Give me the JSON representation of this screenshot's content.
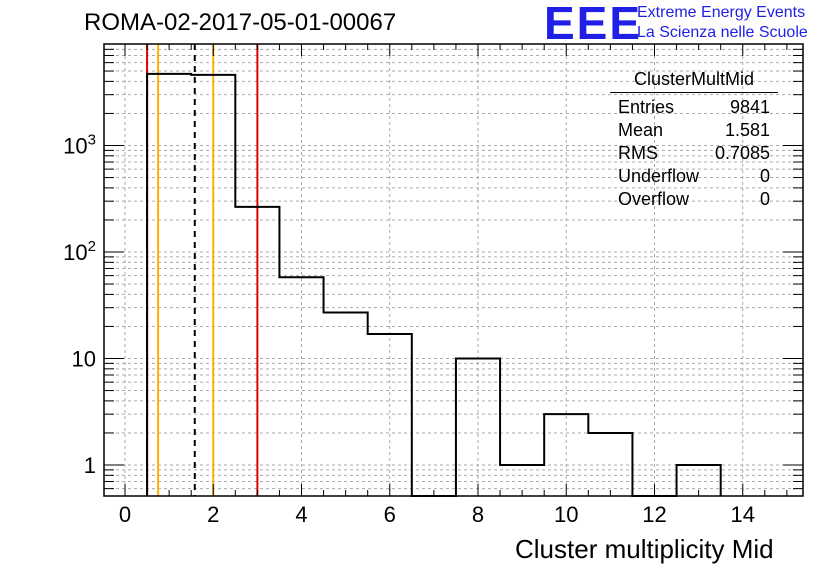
{
  "header": {
    "run_title": "ROMA-02-2017-05-01-00067",
    "logo_mark": "EEE",
    "logo_line1": "Extreme Energy Events",
    "logo_line2": "La Scienza nelle Scuole"
  },
  "stats_box": {
    "title": "ClusterMultMid",
    "rows": [
      {
        "label": "Entries",
        "value": "9841"
      },
      {
        "label": "Mean",
        "value": "1.581"
      },
      {
        "label": "RMS",
        "value": "0.7085"
      },
      {
        "label": "Underflow",
        "value": "0"
      },
      {
        "label": "Overflow",
        "value": "0"
      }
    ]
  },
  "colors": {
    "histogram": "#000000",
    "red_marker": "#e00000",
    "orange_marker": "#ffb000",
    "dashed_marker": "#000000",
    "grid": "#aaaaaa",
    "logo_blue": "#1f1fe6"
  },
  "chart_data": {
    "type": "histogram",
    "title": "ROMA-02-2017-05-01-00067",
    "xlabel": "Cluster multiplicity Mid",
    "ylabel": "",
    "xlim": [
      -0.5,
      15.5
    ],
    "ylim": [
      0.5,
      8000
    ],
    "yscale": "log",
    "grid": true,
    "bins": [
      {
        "x0": 0.5,
        "x1": 1.5,
        "count": 4700
      },
      {
        "x0": 1.5,
        "x1": 2.5,
        "count": 4600
      },
      {
        "x0": 2.5,
        "x1": 3.5,
        "count": 265
      },
      {
        "x0": 3.5,
        "x1": 4.5,
        "count": 58
      },
      {
        "x0": 4.5,
        "x1": 5.5,
        "count": 27
      },
      {
        "x0": 5.5,
        "x1": 6.5,
        "count": 17
      },
      {
        "x0": 6.5,
        "x1": 7.5,
        "count": 0
      },
      {
        "x0": 7.5,
        "x1": 8.5,
        "count": 10
      },
      {
        "x0": 8.5,
        "x1": 9.5,
        "count": 1
      },
      {
        "x0": 9.5,
        "x1": 10.5,
        "count": 3
      },
      {
        "x0": 10.5,
        "x1": 11.5,
        "count": 2
      },
      {
        "x0": 11.5,
        "x1": 12.5,
        "count": 0
      },
      {
        "x0": 12.5,
        "x1": 13.5,
        "count": 1
      }
    ],
    "x_ticks": [
      {
        "value": 0,
        "label": "0"
      },
      {
        "value": 2,
        "label": "2"
      },
      {
        "value": 4,
        "label": "4"
      },
      {
        "value": 6,
        "label": "6"
      },
      {
        "value": 8,
        "label": "8"
      },
      {
        "value": 10,
        "label": "10"
      },
      {
        "value": 12,
        "label": "12"
      },
      {
        "value": 14,
        "label": "14"
      }
    ],
    "y_ticks": [
      {
        "value": 1,
        "base": "1",
        "exp": ""
      },
      {
        "value": 10,
        "base": "10",
        "exp": ""
      },
      {
        "value": 100,
        "base": "10",
        "exp": "2"
      },
      {
        "value": 1000,
        "base": "10",
        "exp": "3"
      }
    ],
    "vertical_lines": [
      {
        "x": 0.5,
        "style": "solid",
        "color": "#e00000"
      },
      {
        "x": 3.0,
        "style": "solid",
        "color": "#e00000"
      },
      {
        "x": 0.75,
        "style": "solid",
        "color": "#ffb000"
      },
      {
        "x": 2.0,
        "style": "solid",
        "color": "#ffb000"
      },
      {
        "x": 1.581,
        "style": "dashed",
        "color": "#000000"
      }
    ]
  }
}
